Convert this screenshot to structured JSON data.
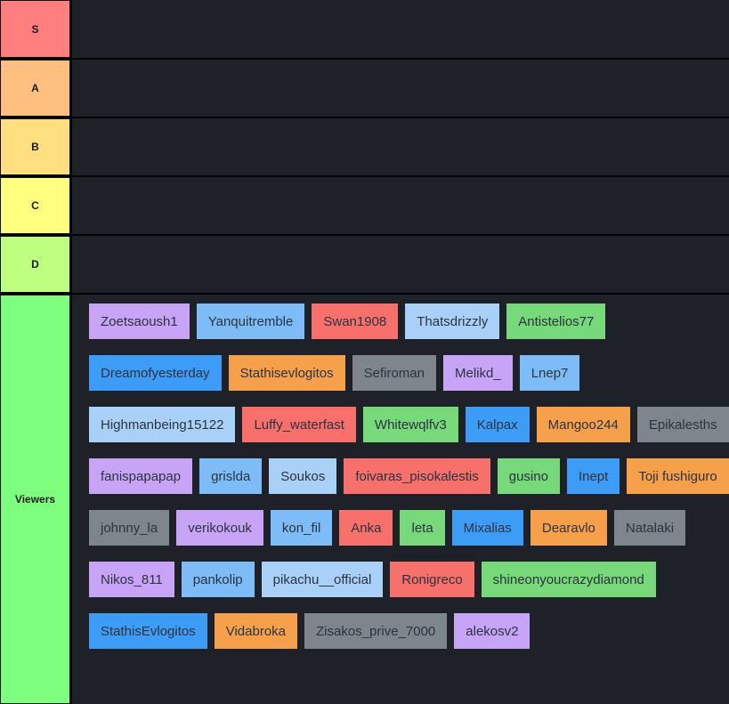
{
  "tiers": [
    {
      "label": "S",
      "color": "#ff7f7f"
    },
    {
      "label": "A",
      "color": "#ffbf7f"
    },
    {
      "label": "B",
      "color": "#ffdf7f"
    },
    {
      "label": "C",
      "color": "#ffff7f"
    },
    {
      "label": "D",
      "color": "#bfff7f"
    }
  ],
  "viewers": {
    "label": "Viewers",
    "color": "#7fff7f",
    "items": [
      {
        "name": "Zoetsaoush1",
        "color": "#c8a4f6"
      },
      {
        "name": "Yanquitremble",
        "color": "#7dbcf7"
      },
      {
        "name": "Swan1908",
        "color": "#f7706b"
      },
      {
        "name": "Thatsdrizzly",
        "color": "#a9d1f7"
      },
      {
        "name": "Antistelios77",
        "color": "#77d97a"
      },
      {
        "name": "Dreamofyesterday",
        "color": "#3d9cf5"
      },
      {
        "name": "Stathisevlogitos",
        "color": "#f7a04b"
      },
      {
        "name": "Sefiroman",
        "color": "#7e858c"
      },
      {
        "name": "Melikd_",
        "color": "#c8a4f6"
      },
      {
        "name": "Lnep7",
        "color": "#7dbcf7"
      },
      {
        "name": "Highmanbeing15122",
        "color": "#a9d1f7"
      },
      {
        "name": "Luffy_waterfast",
        "color": "#f7706b"
      },
      {
        "name": "Whitewqlfv3",
        "color": "#77d97a"
      },
      {
        "name": "Kalpax",
        "color": "#3d9cf5"
      },
      {
        "name": "Mangoo244",
        "color": "#f7a04b"
      },
      {
        "name": "Epikalesths",
        "color": "#7e858c"
      },
      {
        "name": "fanispapapap",
        "color": "#c8a4f6"
      },
      {
        "name": "grislda",
        "color": "#7dbcf7"
      },
      {
        "name": "Soukos",
        "color": "#a9d1f7"
      },
      {
        "name": "foivaras_pisokalestis",
        "color": "#f7706b"
      },
      {
        "name": "gusino",
        "color": "#77d97a"
      },
      {
        "name": "Inept",
        "color": "#3d9cf5"
      },
      {
        "name": "Toji fushiguro",
        "color": "#f7a04b"
      },
      {
        "name": "johnny_la",
        "color": "#7e858c"
      },
      {
        "name": "verikokouk",
        "color": "#c8a4f6"
      },
      {
        "name": "kon_fil",
        "color": "#7dbcf7"
      },
      {
        "name": "Anka",
        "color": "#f7706b"
      },
      {
        "name": "leta",
        "color": "#77d97a"
      },
      {
        "name": "Mixalias",
        "color": "#3d9cf5"
      },
      {
        "name": "Dearavlo",
        "color": "#f7a04b"
      },
      {
        "name": "Natalaki",
        "color": "#7e858c"
      },
      {
        "name": "Nikos_811",
        "color": "#c8a4f6"
      },
      {
        "name": "pankolip",
        "color": "#7dbcf7"
      },
      {
        "name": "pikachu__official",
        "color": "#a9d1f7"
      },
      {
        "name": "Ronigreco",
        "color": "#f7706b"
      },
      {
        "name": "shineonyoucrazydiamond",
        "color": "#77d97a"
      },
      {
        "name": "StathisEvlogitos",
        "color": "#3d9cf5"
      },
      {
        "name": "Vidabroka",
        "color": "#f7a04b"
      },
      {
        "name": "Zisakos_prive_7000",
        "color": "#7e858c"
      },
      {
        "name": "alekosv2",
        "color": "#c8a4f6"
      }
    ]
  }
}
